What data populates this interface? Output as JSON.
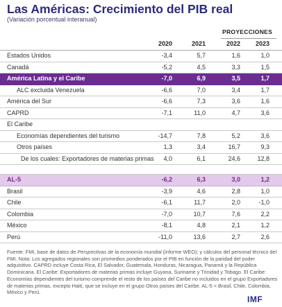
{
  "header": {
    "title": "Las Américas: Crecimiento del PIB real",
    "subtitle": "(Variación porcentual interanual)",
    "projections_label": "PROYECCIONES"
  },
  "table": {
    "years": [
      "2020",
      "2021",
      "2022",
      "2023"
    ],
    "rows": [
      {
        "label": "Estados Unidos",
        "values": [
          "-3,4",
          "5,7",
          "1,6",
          "1,0"
        ],
        "indent": 0,
        "style": ""
      },
      {
        "label": "Canadá",
        "values": [
          "-5,2",
          "4,5",
          "3,3",
          "1,5"
        ],
        "indent": 0,
        "style": ""
      },
      {
        "label": "América Latina y el Caribe",
        "values": [
          "-7,0",
          "6,9",
          "3,5",
          "1,7"
        ],
        "indent": 0,
        "style": "hl"
      },
      {
        "label": "ALC excluida Venezuela",
        "values": [
          "-6,6",
          "7,0",
          "3,4",
          "1,7"
        ],
        "indent": 1,
        "style": ""
      },
      {
        "label": "América del Sur",
        "values": [
          "-6,6",
          "7,3",
          "3,6",
          "1,6"
        ],
        "indent": 0,
        "style": ""
      },
      {
        "label": "CAPRD",
        "values": [
          "-7,1",
          "11,0",
          "4,7",
          "3,6"
        ],
        "indent": 0,
        "style": ""
      },
      {
        "label": "El Caribe",
        "values": [
          "",
          "",
          "",
          ""
        ],
        "indent": 0,
        "style": ""
      },
      {
        "label": "Economías dependientes del turismo",
        "values": [
          "-14,7",
          "7,8",
          "5,2",
          "3,6"
        ],
        "indent": 1,
        "style": ""
      },
      {
        "label": "Otros países",
        "values": [
          "1,3",
          "3,4",
          "16,7",
          "9,3"
        ],
        "indent": 1,
        "style": ""
      },
      {
        "label": "De los cuales: Exportadores de materias primas",
        "values": [
          "4,0",
          "6,1",
          "24,6",
          "12,8"
        ],
        "indent": 2,
        "style": ""
      },
      {
        "label": "",
        "values": [
          "",
          "",
          "",
          ""
        ],
        "indent": 0,
        "style": "gap"
      },
      {
        "label": "AL-5",
        "values": [
          "-6,2",
          "6,3",
          "3,0",
          "1,2"
        ],
        "indent": 0,
        "style": "pink"
      },
      {
        "label": "Brasil",
        "values": [
          "-3,9",
          "4,6",
          "2,8",
          "1,0"
        ],
        "indent": 0,
        "style": ""
      },
      {
        "label": "Chile",
        "values": [
          "-6,1",
          "11,7",
          "2,0",
          "-1,0"
        ],
        "indent": 0,
        "style": ""
      },
      {
        "label": "Colombia",
        "values": [
          "-7,0",
          "10,7",
          "7,6",
          "2,2"
        ],
        "indent": 0,
        "style": ""
      },
      {
        "label": "México",
        "values": [
          "-8,1",
          "4,8",
          "2,1",
          "1,2"
        ],
        "indent": 0,
        "style": ""
      },
      {
        "label": "Perú",
        "values": [
          "-11,0",
          "13,6",
          "2,7",
          "2,6"
        ],
        "indent": 0,
        "style": ""
      }
    ]
  },
  "notes": {
    "source_prefix": "Fuente: FMI, base de datos de ",
    "source_italic": "Perspectivas de la economía mundial",
    "source_suffix": " (informe WEO); y cálculos del personal técnico del FMI.",
    "body": "Nota: Los agregados regionales son promedios ponderados por el PIB en función de la paridad del poder adquisitivo. CAPRD incluye Costa Rica, El Salvador, Guatemala, Honduras, Nicaragua, Panamá y la República Dominicana. El Caribe: Exportadores de materias primas incluye Guyana, Suriname y Trinidad y Tobago. El Caribe: Economías dependientes del turismo comprende el resto de los países del Caribe no incluidos en el grupo Exportadores de materias primas, excepto Haití, que se incluye en el grupo Otros países del Caribe. AL-5 = Brasil, Chile, Colombia, México y Perú."
  },
  "logo": {
    "text": "IMF"
  },
  "colors": {
    "title": "#2b2b7a",
    "highlight": "#6a2c91",
    "al5": "#e3c9ea"
  }
}
